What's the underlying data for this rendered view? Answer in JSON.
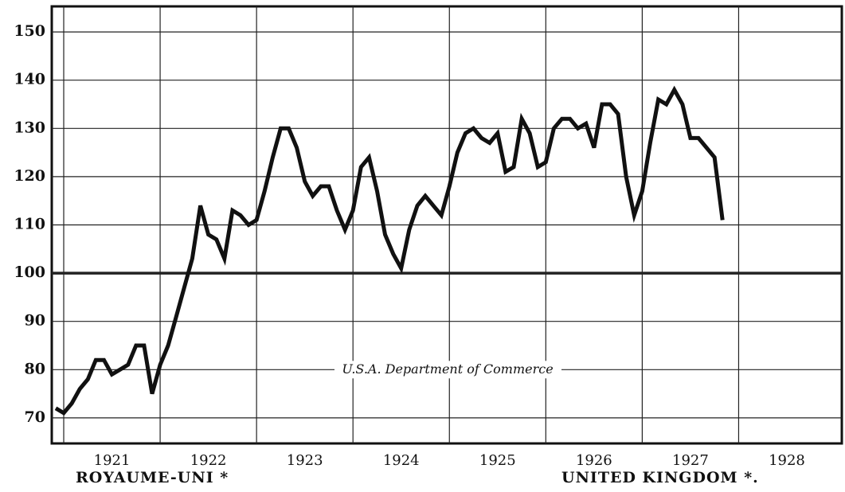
{
  "chart_data": {
    "type": "line",
    "annotation": "U.S.A. Department of Commerce",
    "left_label": "ROYAUME-UNI *",
    "right_label": "UNITED KINGDOM *.",
    "xlim": [
      1920.876,
      1929.07
    ],
    "ylim": [
      64.7,
      155.3
    ],
    "yticks": [
      70,
      80,
      90,
      100,
      110,
      120,
      130,
      140,
      150
    ],
    "xticks": [
      {
        "value": 1921.5,
        "label": "1921"
      },
      {
        "value": 1922.5,
        "label": "1922"
      },
      {
        "value": 1923.5,
        "label": "1923"
      },
      {
        "value": 1924.5,
        "label": "1924"
      },
      {
        "value": 1925.5,
        "label": "1925"
      },
      {
        "value": 1926.5,
        "label": "1926"
      },
      {
        "value": 1927.5,
        "label": "1927"
      },
      {
        "value": 1928.5,
        "label": "1928"
      }
    ],
    "grid": true,
    "reference_line": 100,
    "annotation_y": 80,
    "series": [
      {
        "color": "#111111",
        "x": [
          1920.917,
          1921.0,
          1921.083,
          1921.167,
          1921.25,
          1921.333,
          1921.417,
          1921.5,
          1921.583,
          1921.667,
          1921.75,
          1921.833,
          1921.917,
          1922.0,
          1922.083,
          1922.167,
          1922.25,
          1922.333,
          1922.417,
          1922.5,
          1922.583,
          1922.667,
          1922.75,
          1922.833,
          1922.917,
          1923.0,
          1923.083,
          1923.167,
          1923.25,
          1923.333,
          1923.417,
          1923.5,
          1923.583,
          1923.667,
          1923.75,
          1923.833,
          1923.917,
          1924.0,
          1924.083,
          1924.167,
          1924.25,
          1924.333,
          1924.417,
          1924.5,
          1924.583,
          1924.667,
          1924.75,
          1924.833,
          1924.917,
          1925.0,
          1925.083,
          1925.167,
          1925.25,
          1925.333,
          1925.417,
          1925.5,
          1925.583,
          1925.667,
          1925.75,
          1925.833,
          1925.917,
          1926.0,
          1926.083,
          1926.167,
          1926.25,
          1926.333,
          1926.417,
          1926.5,
          1926.583,
          1926.667,
          1926.75,
          1926.833,
          1926.917,
          1927.0,
          1927.083,
          1927.167,
          1927.25,
          1927.333,
          1927.417,
          1927.5,
          1927.583,
          1927.667,
          1927.75,
          1927.833
        ],
        "values": [
          72,
          71,
          73,
          76,
          78,
          82,
          82,
          79,
          80,
          81,
          85,
          85,
          75,
          81,
          85,
          91,
          97,
          103,
          114,
          108,
          107,
          103,
          113,
          112,
          110,
          111,
          117,
          124,
          130,
          130,
          126,
          119,
          116,
          118,
          118,
          113,
          109,
          113,
          122,
          124,
          117,
          108,
          104,
          101,
          109,
          114,
          116,
          114,
          112,
          118,
          125,
          129,
          130,
          128,
          127,
          129,
          121,
          122,
          132,
          129,
          122,
          123,
          130,
          132,
          132,
          130,
          131,
          126,
          135,
          135,
          133,
          120,
          112,
          117,
          127,
          136,
          135,
          138,
          135,
          128,
          128,
          126,
          124,
          111
        ]
      }
    ]
  }
}
